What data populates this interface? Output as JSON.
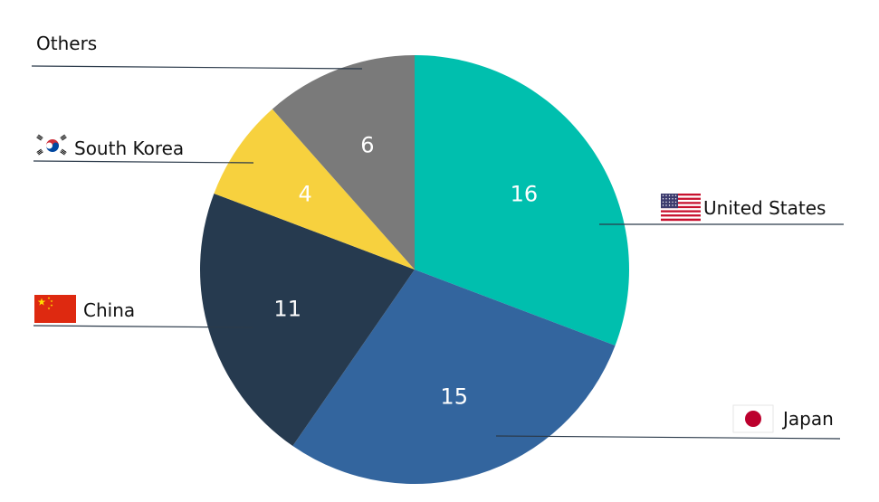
{
  "chart_data": {
    "type": "pie",
    "title": "",
    "slices": [
      {
        "label": "United States",
        "value": 16,
        "color": "#00BFAE",
        "flag": "us-flag-icon"
      },
      {
        "label": "Japan",
        "value": 15,
        "color": "#33659E",
        "flag": "japan-flag-icon"
      },
      {
        "label": "China",
        "value": 11,
        "color": "#263A4F",
        "flag": "china-flag-icon"
      },
      {
        "label": "South Korea",
        "value": 4,
        "color": "#F7D13E",
        "flag": "south-korea-flag-icon"
      },
      {
        "label": "Others",
        "value": 6,
        "color": "#7A7A7A",
        "flag": ""
      }
    ],
    "legend_placement": "callouts-around-pie"
  }
}
